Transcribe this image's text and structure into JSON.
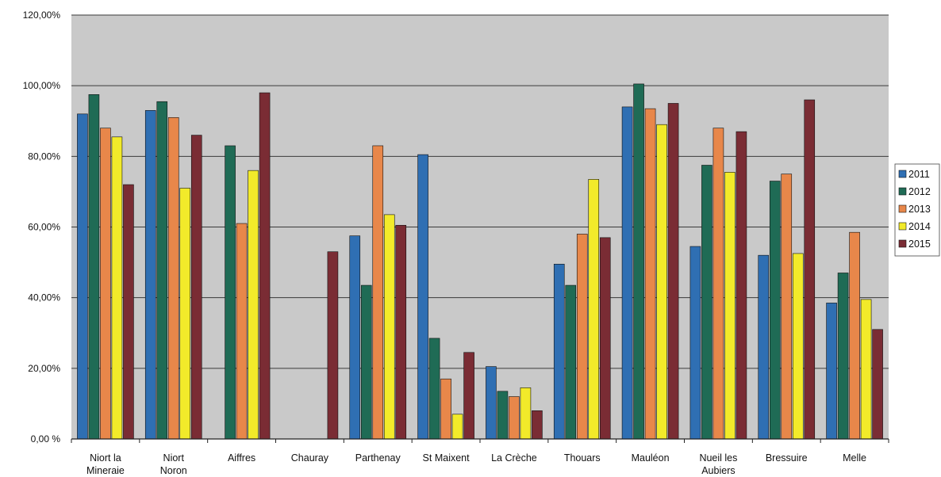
{
  "chart_data": {
    "type": "bar",
    "title": "",
    "xlabel": "",
    "ylabel": "",
    "ylim": [
      0,
      120
    ],
    "y_ticks": [
      "0,00 %",
      "20,00%",
      "40,00%",
      "60,00%",
      "80,00%",
      "100,00%",
      "120,00%"
    ],
    "grid": true,
    "legend_position": "right",
    "categories": [
      "Niort la Mineraie",
      "Niort Noron",
      "Aiffres",
      "Chauray",
      "Parthenay",
      "St Maixent",
      "La Crèche",
      "Thouars",
      "Mauléon",
      "Nueil les Aubiers",
      "Bressuire",
      "Melle"
    ],
    "series": [
      {
        "name": "2011",
        "color": "#2f6fb3",
        "values": [
          92,
          93,
          0,
          0,
          57.5,
          80.5,
          20.5,
          49.5,
          94,
          54.5,
          52,
          38.5
        ]
      },
      {
        "name": "2012",
        "color": "#1f6b55",
        "values": [
          97.5,
          95.5,
          83,
          0,
          43.5,
          28.5,
          13.5,
          43.5,
          100.5,
          77.5,
          73,
          47
        ]
      },
      {
        "name": "2013",
        "color": "#e8874a",
        "values": [
          88,
          91,
          61,
          0,
          83,
          17,
          12,
          58,
          93.5,
          88,
          75,
          58.5
        ]
      },
      {
        "name": "2014",
        "color": "#f2ea2a",
        "values": [
          85.5,
          71,
          76,
          0,
          63.5,
          7,
          14.5,
          73.5,
          89,
          75.5,
          52.5,
          39.5
        ]
      },
      {
        "name": "2015",
        "color": "#7a2c34",
        "values": [
          72,
          86,
          98,
          53,
          60.5,
          24.5,
          8,
          57,
          95,
          87,
          96,
          31
        ]
      }
    ]
  }
}
